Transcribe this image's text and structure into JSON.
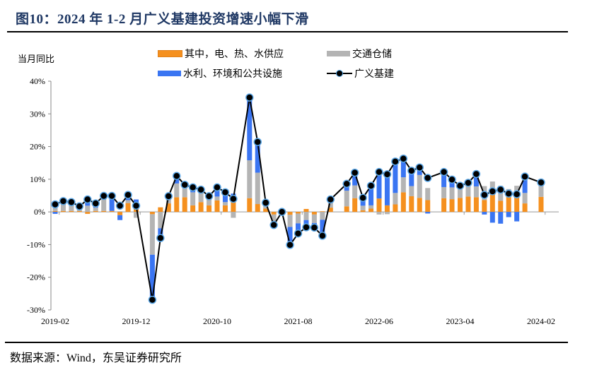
{
  "header": {
    "title": "图10：2024 年 1-2 月广义基建投资增速小幅下滑"
  },
  "footer": {
    "source": "数据来源：Wind，东吴证券研究所"
  },
  "chart_data": {
    "type": "bar",
    "subtype": "stacked-bar-with-line",
    "title": "2024 年 1-2 月广义基建投资增速小幅下滑",
    "ylabel": "当月同比",
    "xlabel": "",
    "ylim": [
      -30,
      40
    ],
    "yticks": [
      "40%",
      "30%",
      "20%",
      "10%",
      "0%",
      "-10%",
      "-20%",
      "-30%"
    ],
    "ytick_values": [
      40,
      30,
      20,
      10,
      0,
      -10,
      -20,
      -30
    ],
    "xtick_labels": [
      "2019-02",
      "2019-12",
      "2020-10",
      "2021-08",
      "2022-06",
      "2023-04",
      "2024-02"
    ],
    "grid": false,
    "legend_position": "top",
    "colors": {
      "utilities": "#f5901e",
      "transport": "#b4b4b4",
      "water_env": "#3a75f2",
      "total_line": "#000000",
      "marker_edge": "#5aa6e6"
    },
    "legend": [
      {
        "key": "utilities",
        "label": "其中，电、热、水供应",
        "kind": "bar"
      },
      {
        "key": "transport",
        "label": "交通仓储",
        "kind": "bar"
      },
      {
        "key": "water_env",
        "label": "水利、环境和公共设施",
        "kind": "bar"
      },
      {
        "key": "total",
        "label": "广义基建",
        "kind": "line"
      }
    ],
    "x": [
      "2019-02",
      "2019-03",
      "2019-04",
      "2019-05",
      "2019-06",
      "2019-07",
      "2019-08",
      "2019-09",
      "2019-10",
      "2019-11",
      "2019-12",
      "2020-02",
      "2020-03",
      "2020-04",
      "2020-05",
      "2020-06",
      "2020-07",
      "2020-08",
      "2020-09",
      "2020-10",
      "2020-11",
      "2020-12",
      "2021-02",
      "2021-03",
      "2021-04",
      "2021-05",
      "2021-06",
      "2021-07",
      "2021-08",
      "2021-09",
      "2021-10",
      "2021-11",
      "2021-12",
      "2022-02",
      "2022-03",
      "2022-04",
      "2022-05",
      "2022-06",
      "2022-07",
      "2022-08",
      "2022-09",
      "2022-10",
      "2022-11",
      "2022-12",
      "2023-02",
      "2023-03",
      "2023-04",
      "2023-05",
      "2023-06",
      "2023-07",
      "2023-08",
      "2023-09",
      "2023-10",
      "2023-11",
      "2023-12",
      "2024-02"
    ],
    "series": [
      {
        "name": "其中，电、热、水供应",
        "key": "utilities",
        "values": [
          0.3,
          0.3,
          0.3,
          0.3,
          -0.6,
          0.3,
          0.3,
          0.3,
          -1.0,
          2.7,
          0.8,
          -0.7,
          1.4,
          2.6,
          4.5,
          4.5,
          2.0,
          3.0,
          2.0,
          3.5,
          2.0,
          4.0,
          4.2,
          2.4,
          1.0,
          -0.8,
          -0.3,
          -0.9,
          -0.5,
          0.9,
          -0.8,
          0.2,
          1.3,
          1.7,
          4.2,
          0.5,
          1.0,
          4.1,
          2.0,
          2.3,
          6.0,
          4.8,
          4.3,
          3.6,
          4.2,
          3.9,
          4.3,
          4.7,
          4.5,
          3.6,
          5.6,
          3.4,
          5.0,
          4.5,
          2.6,
          4.6
        ]
      },
      {
        "name": "交通仓储",
        "key": "transport",
        "values": [
          1.8,
          2.5,
          2.7,
          0.8,
          1.9,
          1.0,
          4.3,
          0.0,
          0.2,
          0.9,
          -1.8,
          -12.4,
          -5.0,
          1.3,
          4.2,
          3.6,
          4.0,
          2.8,
          2.5,
          1.2,
          1.0,
          -1.8,
          11.6,
          9.6,
          1.0,
          -2.2,
          0.0,
          -3.7,
          -3.0,
          -2.5,
          -2.6,
          -2.4,
          1.5,
          4.8,
          3.9,
          1.4,
          1.0,
          -0.8,
          -0.7,
          3.5,
          4.6,
          3.1,
          7.0,
          3.7,
          3.4,
          3.6,
          2.8,
          3.3,
          3.3,
          4.3,
          3.7,
          4.6,
          2.0,
          3.5,
          3.2,
          4.3
        ]
      },
      {
        "name": "水利、环境和公共设施",
        "key": "water_env",
        "values": [
          -0.6,
          0.8,
          0.0,
          0.6,
          2.0,
          1.3,
          0.3,
          4.6,
          -1.5,
          1.2,
          3.0,
          -14.0,
          -3.5,
          1.0,
          2.4,
          0.2,
          1.5,
          1.0,
          0.3,
          3.0,
          3.0,
          1.6,
          18.8,
          9.5,
          0.9,
          -1.0,
          0.0,
          -5.5,
          -3.2,
          -2.1,
          -1.4,
          -4.2,
          1.0,
          2.0,
          4.2,
          2.4,
          6.0,
          8.2,
          9.2,
          9.7,
          5.6,
          4.6,
          2.5,
          -0.5,
          4.6,
          2.4,
          0.9,
          0.6,
          3.9,
          -0.8,
          -3.3,
          -3.6,
          -1.6,
          -2.9,
          5.0,
          0.1
        ]
      },
      {
        "name": "广义基建",
        "key": "total",
        "values": [
          2.3,
          3.3,
          3.0,
          1.7,
          3.8,
          2.6,
          4.9,
          4.9,
          1.9,
          5.2,
          1.9,
          -26.9,
          -8.0,
          4.8,
          11.0,
          8.3,
          7.5,
          6.8,
          4.8,
          7.5,
          6.0,
          4.0,
          35.0,
          21.4,
          2.8,
          -4.0,
          0.0,
          -10.1,
          -6.6,
          -4.7,
          -4.8,
          -7.3,
          3.8,
          8.6,
          12.0,
          4.3,
          8.0,
          12.2,
          11.5,
          15.4,
          16.3,
          12.6,
          13.6,
          10.4,
          12.2,
          9.9,
          8.0,
          8.9,
          11.6,
          5.2,
          6.3,
          6.8,
          5.6,
          5.4,
          10.8,
          9.0
        ]
      }
    ]
  }
}
